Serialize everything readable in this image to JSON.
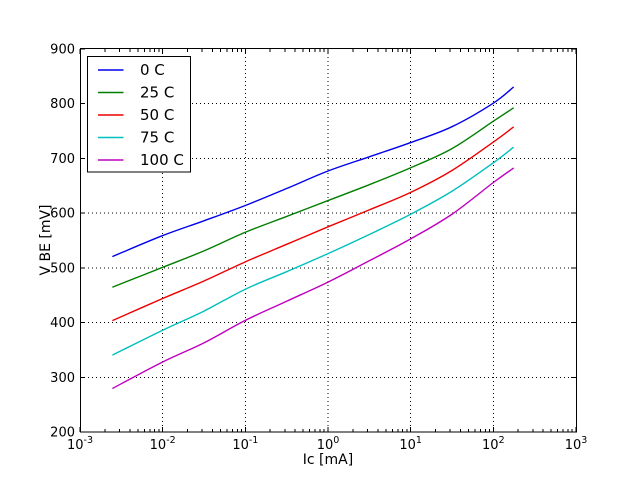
{
  "chart_data": {
    "type": "line",
    "title": "",
    "xlabel": "Ic [mA]",
    "ylabel": "V BE [mV]",
    "x_scale": "log",
    "xlim": [
      0.001,
      1000
    ],
    "ylim": [
      200,
      900
    ],
    "x_tick_exponents": [
      -3,
      -2,
      -1,
      0,
      1,
      2,
      3
    ],
    "x_tick_base": "10",
    "y_ticks": [
      200,
      300,
      400,
      500,
      600,
      700,
      800,
      900
    ],
    "grid": "dotted",
    "frame_color": "#000000",
    "legend": {
      "position": "upper left",
      "entries": [
        "0 C",
        "25 C",
        "50 C",
        "75 C",
        "100 C"
      ]
    },
    "x_mA": [
      0.0025,
      0.01,
      0.0316,
      0.1,
      0.316,
      1,
      3.16,
      10,
      31.6,
      100,
      174
    ],
    "series": [
      {
        "name": "0 C",
        "color": "#0000ee",
        "values": [
          521,
          559,
          586,
          614,
          645,
          677,
          703,
          729,
          758,
          801,
          830
        ]
      },
      {
        "name": "25 C",
        "color": "#007f00",
        "values": [
          465,
          501,
          531,
          565,
          594,
          623,
          652,
          683,
          718,
          768,
          792
        ]
      },
      {
        "name": "50 C",
        "color": "#ee0000",
        "values": [
          404,
          444,
          476,
          511,
          543,
          575,
          606,
          638,
          678,
          730,
          757
        ]
      },
      {
        "name": "75 C",
        "color": "#00bfbf",
        "values": [
          341,
          386,
          421,
          461,
          493,
          526,
          561,
          598,
          640,
          692,
          720
        ]
      },
      {
        "name": "100 C",
        "color": "#bf00bf",
        "values": [
          280,
          328,
          363,
          404,
          439,
          474,
          513,
          553,
          598,
          656,
          682
        ]
      }
    ]
  }
}
